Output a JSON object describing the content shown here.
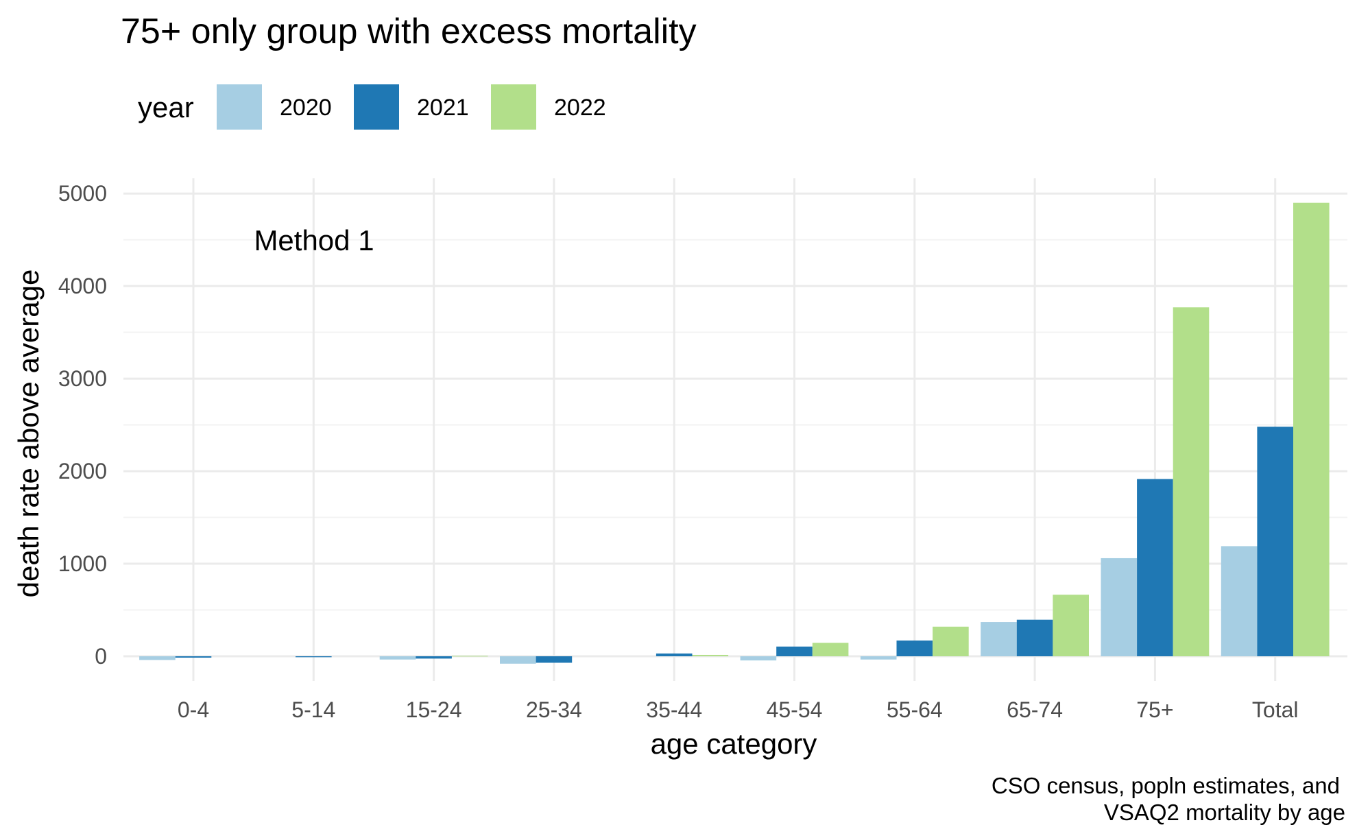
{
  "chart_data": {
    "type": "bar",
    "title": "75+ only group with excess mortality",
    "xlabel": "age category",
    "ylabel": "death rate above average",
    "legend_title": "year",
    "legend_position": "top-left",
    "annotation": "Method 1",
    "caption_lines": [
      "CSO census, popln estimates, and",
      "VSAQ2 mortality by age"
    ],
    "categories": [
      "0-4",
      "5-14",
      "15-24",
      "25-34",
      "35-44",
      "45-54",
      "55-64",
      "65-74",
      "75+",
      "Total"
    ],
    "yticks": [
      0,
      1000,
      2000,
      3000,
      4000,
      5000
    ],
    "ylim": [
      -300,
      5150
    ],
    "grid": true,
    "series": [
      {
        "name": "2020",
        "color": "#a6cee3",
        "values": [
          -40,
          0,
          -35,
          -80,
          0,
          -45,
          -35,
          370,
          1060,
          1190
        ]
      },
      {
        "name": "2021",
        "color": "#1f78b4",
        "values": [
          -15,
          -10,
          -25,
          -70,
          30,
          105,
          170,
          395,
          1915,
          2480
        ]
      },
      {
        "name": "2022",
        "color": "#b2df8a",
        "values": [
          0,
          0,
          5,
          0,
          15,
          145,
          320,
          665,
          3770,
          4900
        ]
      }
    ]
  }
}
